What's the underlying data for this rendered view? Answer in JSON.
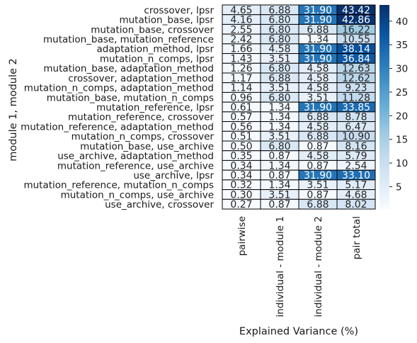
{
  "chart_data": {
    "type": "heatmap",
    "title": "",
    "xlabel": "Explained Variance (%)",
    "ylabel": "module 1, module 2",
    "columns": [
      "pairwise",
      "individual - module 1",
      "individual - module 2",
      "pair total"
    ],
    "rows": [
      "crossover, lpsr",
      "mutation_base, lpsr",
      "mutation_base, crossover",
      "mutation_base, mutation_reference",
      "adaptation_method, lpsr",
      "mutation_n_comps, lpsr",
      "mutation_base, adaptation_method",
      "crossover, adaptation_method",
      "mutation_n_comps, adaptation_method",
      "mutation_base, mutation_n_comps",
      "mutation_reference, lpsr",
      "mutation_reference, crossover",
      "mutation_reference, adaptation_method",
      "mutation_n_comps, crossover",
      "mutation_base, use_archive",
      "use_archive, adaptation_method",
      "mutation_reference, use_archive",
      "use_archive, lpsr",
      "mutation_reference, mutation_n_comps",
      "mutation_n_comps, use_archive",
      "use_archive, crossover"
    ],
    "values": [
      [
        4.65,
        6.88,
        31.9,
        43.42
      ],
      [
        4.16,
        6.8,
        31.9,
        42.86
      ],
      [
        2.55,
        6.8,
        6.88,
        16.22
      ],
      [
        2.42,
        6.8,
        1.34,
        10.55
      ],
      [
        1.66,
        4.58,
        31.9,
        38.14
      ],
      [
        1.43,
        3.51,
        31.9,
        36.84
      ],
      [
        1.26,
        6.8,
        4.58,
        12.63
      ],
      [
        1.17,
        6.88,
        4.58,
        12.62
      ],
      [
        1.14,
        3.51,
        4.58,
        9.23
      ],
      [
        0.96,
        6.8,
        3.51,
        11.28
      ],
      [
        0.61,
        1.34,
        31.9,
        33.85
      ],
      [
        0.57,
        1.34,
        6.88,
        8.78
      ],
      [
        0.56,
        1.34,
        4.58,
        6.47
      ],
      [
        0.51,
        3.51,
        6.88,
        10.9
      ],
      [
        0.5,
        6.8,
        0.87,
        8.16
      ],
      [
        0.35,
        0.87,
        4.58,
        5.79
      ],
      [
        0.34,
        1.34,
        0.87,
        2.54
      ],
      [
        0.34,
        0.87,
        31.9,
        33.1
      ],
      [
        0.32,
        1.34,
        3.51,
        5.17
      ],
      [
        0.3,
        3.51,
        0.87,
        4.68
      ],
      [
        0.27,
        0.87,
        6.88,
        8.02
      ]
    ],
    "colorbar": {
      "colormap": "Blues",
      "min": 0.27,
      "max": 43.42,
      "ticks": [
        5,
        10,
        15,
        20,
        25,
        30,
        35,
        40
      ]
    },
    "cell_borders": true,
    "border_color": "#000000"
  }
}
